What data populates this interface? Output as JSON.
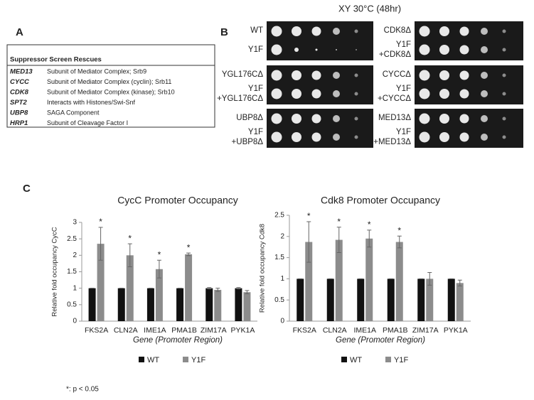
{
  "header": {
    "title": "XY 30°C (48hr)"
  },
  "panels": {
    "a": "A",
    "b": "B",
    "c": "C"
  },
  "table": {
    "title": "Suppressor Screen Rescues",
    "rows": [
      [
        "MED13",
        "Subunit of Mediator Complex; Srb9"
      ],
      [
        "CYCC",
        "Subunit of Mediator Complex (cyclin); Srb11"
      ],
      [
        "CDK8",
        "Subunit of Mediator Complex (kinase); Srb10"
      ],
      [
        "SPT2",
        "Interacts with Histones/Swi-Snf"
      ],
      [
        "UBP8",
        "SAGA Component"
      ],
      [
        "HRP1",
        "Subunit of Cleavage Factor I"
      ]
    ]
  },
  "spot_assay": {
    "rows": [
      {
        "left": {
          "top": [
            "WT"
          ],
          "bottom": [
            "Y1F"
          ]
        },
        "right": {
          "top": [
            "CDK8Δ"
          ],
          "bottom": [
            "Y1F",
            "+CDK8Δ"
          ]
        }
      },
      {
        "left": {
          "top": [
            "YGL176CΔ"
          ],
          "bottom": [
            "Y1F",
            "+YGL176CΔ"
          ]
        },
        "right": {
          "top": [
            "CYCCΔ"
          ],
          "bottom": [
            "Y1F",
            "+CYCCΔ"
          ]
        }
      },
      {
        "left": {
          "top": [
            "UBP8Δ"
          ],
          "bottom": [
            "Y1F",
            "+UBP8Δ"
          ]
        },
        "right": {
          "top": [
            "MED13Δ"
          ],
          "bottom": [
            "Y1F",
            "+MED13Δ"
          ]
        }
      }
    ]
  },
  "chart_data": [
    {
      "type": "bar",
      "title": "CycC Promoter Occupancy",
      "categories": [
        "FKS2A",
        "CLN2A",
        "IME1A",
        "PMA1B",
        "ZIM17A",
        "PYK1A"
      ],
      "series": [
        {
          "name": "WT",
          "color": "#111111",
          "values": [
            1,
            1,
            1,
            1,
            1,
            1
          ],
          "errors": [
            0,
            0,
            0,
            0,
            0.02,
            0.02
          ]
        },
        {
          "name": "Y1F",
          "color": "#8c8c8c",
          "values": [
            2.35,
            2.0,
            1.58,
            2.03,
            0.95,
            0.88
          ],
          "errors": [
            0.5,
            0.35,
            0.27,
            0.04,
            0.05,
            0.05
          ],
          "significance": [
            "*",
            "*",
            "*",
            "*",
            null,
            null
          ]
        }
      ],
      "ylim": [
        0,
        3
      ],
      "yticks": [
        0,
        0.5,
        1,
        1.5,
        2,
        2.5,
        3
      ],
      "ylabel": "Relative fold occupancy CycC",
      "xlabel": "Gene (Promoter Region)",
      "legend": "bottom"
    },
    {
      "type": "bar",
      "title": "Cdk8 Promoter Occupancy",
      "categories": [
        "FKS2A",
        "CLN2A",
        "IME1A",
        "PMA1B",
        "ZIM17A",
        "PYK1A"
      ],
      "series": [
        {
          "name": "WT",
          "color": "#111111",
          "values": [
            1,
            1,
            1,
            1,
            1,
            1
          ],
          "errors": [
            0,
            0,
            0,
            0,
            0,
            0
          ]
        },
        {
          "name": "Y1F",
          "color": "#8c8c8c",
          "values": [
            1.87,
            1.92,
            1.95,
            1.87,
            1.0,
            0.9
          ],
          "errors": [
            0.48,
            0.3,
            0.2,
            0.14,
            0.15,
            0.07
          ],
          "significance": [
            "*",
            "*",
            "*",
            "*",
            null,
            null
          ]
        }
      ],
      "ylim": [
        0,
        2.5
      ],
      "yticks": [
        0,
        0.5,
        1,
        1.5,
        2,
        2.5
      ],
      "ylabel": "Relative fold occupancy Cdk8",
      "xlabel": "Gene (Promoter Region)",
      "legend": "bottom"
    }
  ],
  "footnote": "*: p < 0.05"
}
